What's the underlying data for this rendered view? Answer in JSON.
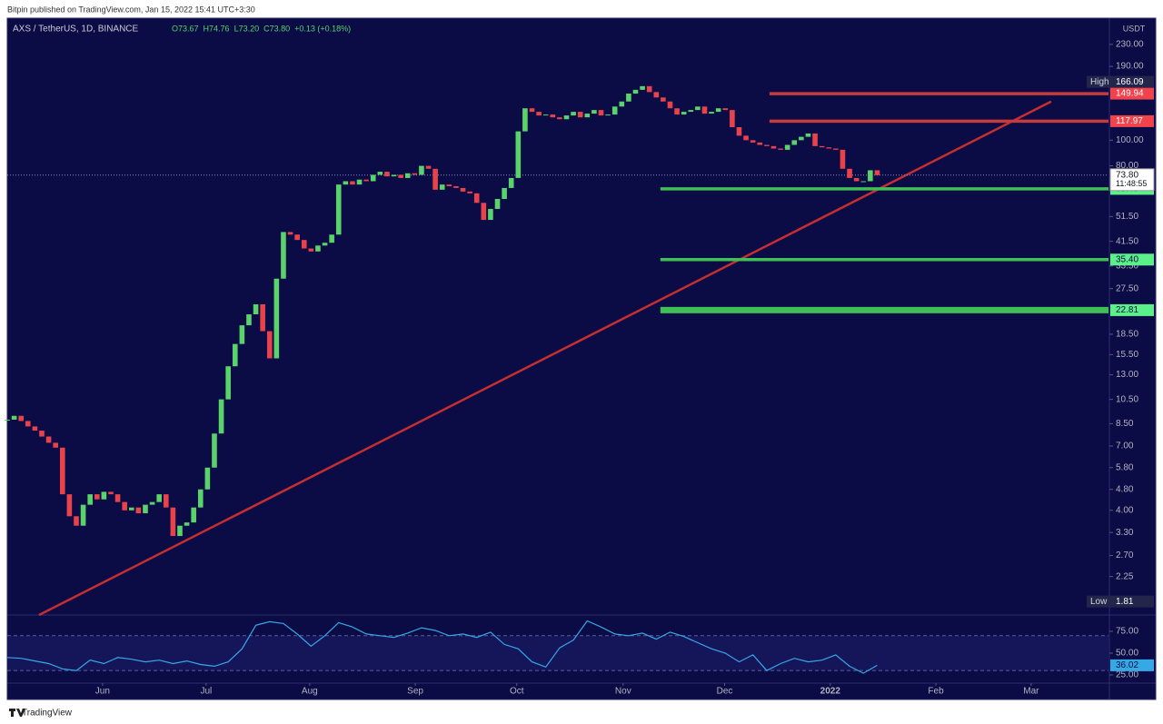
{
  "header": {
    "published": "Bitpin published on TradingView.com, Jan 15, 2022 15:41 UTC+3:30"
  },
  "footer": {
    "brand": "TradingView"
  },
  "chart_data": {
    "type": "candlestick",
    "title": "AXS / TetherUS, 1D, BINANCE",
    "ohlc": [
      "O73.67",
      "H74.76",
      "L73.20",
      "C73.80",
      "+0.13 (+0.18%)"
    ],
    "currency": "USDT",
    "log_scale": true,
    "up_color": "#5ad36a",
    "down_color": "#e8434a",
    "values": [
      8.8,
      9.1,
      8.7,
      8.3,
      8.0,
      7.6,
      7.2,
      6.9,
      4.6,
      3.8,
      3.5,
      4.2,
      4.6,
      4.4,
      4.7,
      4.6,
      4.3,
      4.0,
      4.1,
      3.9,
      4.2,
      4.3,
      4.6,
      4.1,
      3.2,
      3.5,
      3.6,
      4.1,
      4.8,
      5.8,
      7.8,
      10.5,
      14,
      17,
      20,
      22,
      24,
      19,
      15,
      30,
      45,
      44,
      42,
      39,
      38,
      40,
      41,
      44,
      68,
      70,
      68,
      71,
      70,
      74,
      76,
      73,
      74,
      72,
      75,
      74,
      80,
      78,
      65,
      68,
      67,
      66,
      64,
      63,
      58,
      50,
      55,
      60,
      66,
      72,
      108,
      132,
      128,
      124,
      125,
      122,
      120,
      124,
      128,
      122,
      126,
      130,
      124,
      125,
      134,
      140,
      150,
      155,
      160,
      152,
      145,
      140,
      132,
      125,
      128,
      130,
      134,
      126,
      128,
      132,
      130,
      112,
      104,
      100,
      98,
      96,
      95,
      93,
      92,
      96,
      100,
      103,
      106,
      95,
      94,
      93,
      92,
      78,
      72,
      70,
      70,
      77,
      73.8
    ],
    "xlim": [
      0,
      159.5
    ],
    "xticks": [
      {
        "value": 13.8,
        "label": "Jun"
      },
      {
        "value": 28.8,
        "label": "Jul"
      },
      {
        "value": 43.8,
        "label": "Aug"
      },
      {
        "value": 59.1,
        "label": "Sep"
      },
      {
        "value": 73.8,
        "label": "Oct"
      },
      {
        "value": 89.2,
        "label": "Nov"
      },
      {
        "value": 103.9,
        "label": "Dec"
      },
      {
        "value": 119.2,
        "label": "2022"
      },
      {
        "value": 134.5,
        "label": "Feb"
      },
      {
        "value": 148.3,
        "label": "Mar"
      }
    ],
    "ylim": [
      1.61,
      289
    ],
    "yticks": [
      {
        "value": 230,
        "label": "230.00"
      },
      {
        "value": 190,
        "label": "190.00"
      },
      {
        "value": 100,
        "label": "100.00"
      },
      {
        "value": 80,
        "label": "80.00"
      },
      {
        "value": 51.5,
        "label": "51.50"
      },
      {
        "value": 41.5,
        "label": "41.50"
      },
      {
        "value": 33.5,
        "label": "33.50"
      },
      {
        "value": 27.5,
        "label": "27.50"
      },
      {
        "value": 18.5,
        "label": "18.50"
      },
      {
        "value": 15.5,
        "label": "15.50"
      },
      {
        "value": 13,
        "label": "13.00"
      },
      {
        "value": 10.5,
        "label": "10.50"
      },
      {
        "value": 8.5,
        "label": "8.50"
      },
      {
        "value": 7,
        "label": "7.00"
      },
      {
        "value": 5.8,
        "label": "5.80"
      },
      {
        "value": 4.8,
        "label": "4.80"
      },
      {
        "value": 4,
        "label": "4.00"
      },
      {
        "value": 3.3,
        "label": "3.30"
      },
      {
        "value": 2.7,
        "label": "2.70"
      },
      {
        "value": 2.25,
        "label": "2.25"
      }
    ],
    "high": {
      "label": "High",
      "value": 166.09
    },
    "low": {
      "label": "Low",
      "value": 1.81
    },
    "last_price": {
      "value": 73.8,
      "label": "73.80",
      "countdown": "11:48:55"
    },
    "levels": [
      {
        "value": 149.94,
        "from": 110.4,
        "color": "#c93a3a"
      },
      {
        "value": 117.97,
        "from": 110.4,
        "color": "#c93a3a"
      },
      {
        "value": 65.49,
        "from": 94.6,
        "color": "#3fbf55"
      },
      {
        "value": 35.4,
        "label": "35.40",
        "from": 94.6,
        "color": "#3fbf55"
      },
      {
        "value": 22.81,
        "from": 94.6,
        "color": "#3fbf55"
      }
    ],
    "trendline": {
      "x": [
        4.6,
        151.2
      ],
      "y": [
        1.61,
        140
      ],
      "color": "#c62f2f"
    },
    "rsi": {
      "values": [
        45,
        44,
        41,
        38,
        32,
        30,
        42,
        38,
        45,
        43,
        40,
        42,
        38,
        41,
        37,
        35,
        40,
        55,
        82,
        86,
        84,
        72,
        58,
        70,
        85,
        80,
        72,
        70,
        68,
        73,
        79,
        76,
        70,
        72,
        68,
        74,
        60,
        55,
        40,
        34,
        56,
        65,
        87,
        80,
        72,
        70,
        73,
        66,
        74,
        69,
        62,
        55,
        50,
        40,
        48,
        30,
        38,
        44,
        40,
        42,
        48,
        35,
        27,
        36.02
      ],
      "ylim": [
        15.6,
        92.7
      ],
      "yticks": [
        {
          "value": 75,
          "label": "75.00"
        },
        {
          "value": 50,
          "label": "50.00"
        },
        {
          "value": 25,
          "label": "25.00"
        }
      ],
      "band": [
        30,
        70
      ],
      "color": "#35a9e6"
    }
  }
}
